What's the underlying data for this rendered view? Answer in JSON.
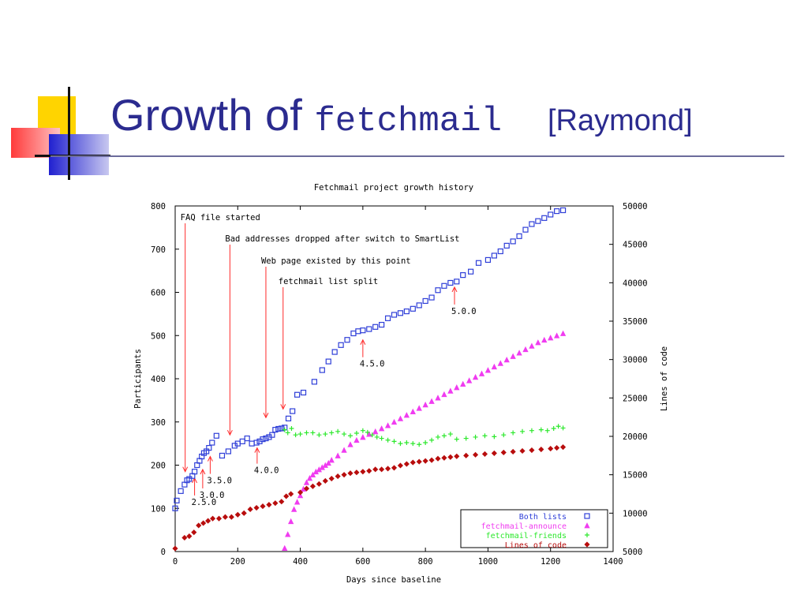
{
  "slide": {
    "title_prefix": "Growth of",
    "title_code": "fetchmail",
    "citation": "[Raymond]"
  },
  "chart_data": {
    "type": "scatter",
    "title": "Fetchmail project growth history",
    "xlabel": "Days since baseline",
    "ylabel": "Participants",
    "y2label": "Lines of code",
    "xlim": [
      0,
      1400
    ],
    "ylim": [
      0,
      800
    ],
    "y2lim": [
      5000,
      50000
    ],
    "xticks": [
      0,
      200,
      400,
      600,
      800,
      1000,
      1200,
      1400
    ],
    "yticks": [
      0,
      100,
      200,
      300,
      400,
      500,
      600,
      700,
      800
    ],
    "y2ticks": [
      5000,
      10000,
      15000,
      20000,
      25000,
      30000,
      35000,
      40000,
      45000,
      50000
    ],
    "legend_position": "bottom-right",
    "series": [
      {
        "name": "Both lists",
        "color": "#2f3fd8",
        "marker": "square",
        "axis": "left",
        "x": [
          0,
          5,
          18,
          30,
          38,
          45,
          55,
          62,
          70,
          78,
          85,
          92,
          100,
          108,
          118,
          132,
          150,
          170,
          190,
          200,
          215,
          230,
          245,
          260,
          270,
          280,
          290,
          300,
          310,
          320,
          330,
          340,
          350,
          362,
          375,
          390,
          410,
          445,
          470,
          490,
          510,
          530,
          550,
          570,
          585,
          600,
          620,
          640,
          660,
          680,
          700,
          720,
          740,
          760,
          780,
          800,
          820,
          840,
          860,
          880,
          900,
          920,
          945,
          970,
          1000,
          1020,
          1040,
          1060,
          1080,
          1100,
          1120,
          1140,
          1160,
          1180,
          1200,
          1220,
          1240
        ],
        "y": [
          100,
          118,
          140,
          155,
          165,
          168,
          175,
          185,
          200,
          210,
          220,
          228,
          232,
          240,
          252,
          268,
          222,
          232,
          245,
          250,
          255,
          262,
          250,
          252,
          255,
          260,
          262,
          265,
          270,
          282,
          284,
          285,
          287,
          308,
          325,
          363,
          368,
          393,
          420,
          440,
          462,
          478,
          490,
          505,
          510,
          512,
          515,
          520,
          525,
          540,
          548,
          552,
          556,
          562,
          570,
          580,
          588,
          605,
          615,
          622,
          625,
          640,
          648,
          668,
          675,
          685,
          695,
          708,
          718,
          730,
          745,
          758,
          765,
          772,
          780,
          788,
          790
        ]
      },
      {
        "name": "fetchmail-announce",
        "color": "#f03cf0",
        "marker": "triangle",
        "axis": "left",
        "x": [
          350,
          360,
          370,
          380,
          390,
          400,
          410,
          420,
          430,
          440,
          450,
          460,
          470,
          480,
          490,
          500,
          520,
          540,
          560,
          580,
          600,
          620,
          640,
          660,
          680,
          700,
          720,
          740,
          760,
          780,
          800,
          820,
          840,
          860,
          880,
          900,
          920,
          940,
          960,
          980,
          1000,
          1020,
          1040,
          1060,
          1080,
          1100,
          1120,
          1140,
          1160,
          1180,
          1200,
          1220,
          1240
        ],
        "y": [
          8,
          40,
          70,
          98,
          115,
          130,
          145,
          160,
          170,
          178,
          185,
          190,
          195,
          200,
          205,
          212,
          222,
          235,
          248,
          258,
          265,
          272,
          278,
          285,
          292,
          300,
          308,
          316,
          324,
          332,
          340,
          348,
          356,
          364,
          372,
          380,
          388,
          396,
          404,
          412,
          420,
          428,
          436,
          444,
          452,
          460,
          468,
          476,
          484,
          490,
          495,
          500,
          505
        ]
      },
      {
        "name": "fetchmail-friends",
        "color": "#2ce82c",
        "marker": "plus",
        "axis": "left",
        "x": [
          350,
          360,
          372,
          385,
          400,
          420,
          440,
          460,
          480,
          500,
          520,
          540,
          560,
          580,
          600,
          615,
          630,
          645,
          660,
          680,
          700,
          720,
          740,
          760,
          780,
          800,
          820,
          840,
          860,
          880,
          900,
          930,
          960,
          990,
          1020,
          1050,
          1080,
          1110,
          1140,
          1170,
          1190,
          1210,
          1225,
          1240
        ],
        "y": [
          282,
          275,
          285,
          270,
          272,
          275,
          275,
          270,
          272,
          275,
          278,
          272,
          268,
          274,
          280,
          276,
          270,
          265,
          262,
          258,
          255,
          250,
          252,
          250,
          248,
          252,
          258,
          265,
          268,
          272,
          260,
          262,
          265,
          268,
          266,
          270,
          275,
          278,
          280,
          282,
          280,
          285,
          290,
          286
        ]
      },
      {
        "name": "Lines of code",
        "color": "#b80d0d",
        "marker": "diamond",
        "axis": "right",
        "x": [
          0,
          30,
          45,
          60,
          75,
          90,
          105,
          120,
          140,
          160,
          180,
          200,
          220,
          240,
          260,
          280,
          300,
          320,
          340,
          355,
          370,
          400,
          420,
          440,
          460,
          480,
          500,
          520,
          540,
          560,
          580,
          600,
          620,
          640,
          660,
          680,
          700,
          720,
          740,
          760,
          780,
          800,
          820,
          840,
          860,
          880,
          900,
          930,
          960,
          990,
          1020,
          1050,
          1080,
          1110,
          1140,
          1170,
          1200,
          1220,
          1240
        ],
        "y": [
          5400,
          6800,
          7000,
          7500,
          8400,
          8700,
          9000,
          9300,
          9300,
          9500,
          9500,
          9800,
          10000,
          10500,
          10700,
          10900,
          11100,
          11300,
          11500,
          12200,
          12500,
          12700,
          13200,
          13500,
          13800,
          14200,
          14500,
          14800,
          15000,
          15200,
          15300,
          15400,
          15500,
          15700,
          15700,
          15800,
          15900,
          16200,
          16400,
          16600,
          16700,
          16800,
          16900,
          17100,
          17200,
          17300,
          17400,
          17500,
          17600,
          17700,
          17800,
          17900,
          18000,
          18100,
          18200,
          18300,
          18400,
          18500,
          18600
        ]
      }
    ],
    "annotations": [
      {
        "text": "FAQ file started",
        "x": 32,
        "y": 185
      },
      {
        "text": "Bad addresses dropped after switch to SmartList",
        "x": 175,
        "y": 270
      },
      {
        "text": "Web page existed by this point",
        "x": 290,
        "y": 310
      },
      {
        "text": "fetchmail list split",
        "x": 345,
        "y": 330
      },
      {
        "text": "2.5.0",
        "x": 62,
        "y": 170
      },
      {
        "text": "3.0.0",
        "x": 88,
        "y": 190
      },
      {
        "text": "3.5.0",
        "x": 112,
        "y": 220
      },
      {
        "text": "4.0.0",
        "x": 262,
        "y": 240
      },
      {
        "text": "4.5.0",
        "x": 600,
        "y": 490
      },
      {
        "text": "5.0.0",
        "x": 893,
        "y": 612
      }
    ]
  }
}
